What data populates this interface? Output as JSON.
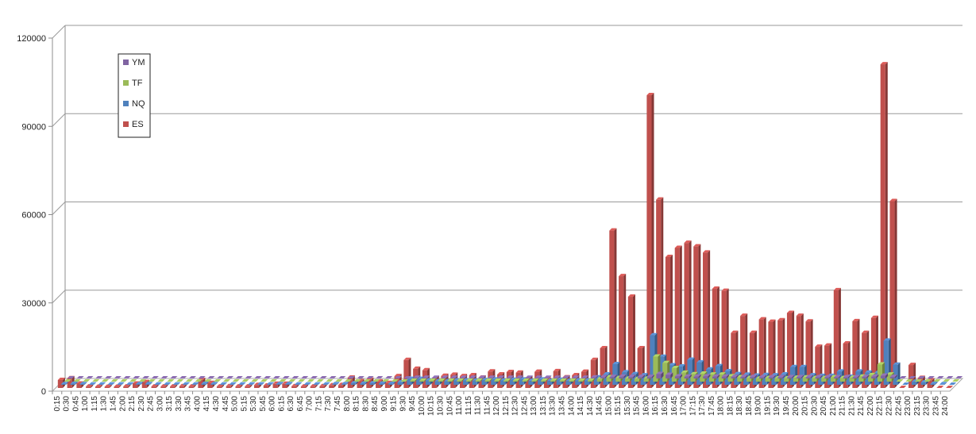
{
  "chart_data": {
    "type": "bar",
    "title": "",
    "xlabel": "",
    "ylabel": "",
    "ylim": [
      0,
      120000
    ],
    "yticks": [
      "0",
      "30000",
      "60000",
      "90000",
      "120000"
    ],
    "grid": true,
    "legend": {
      "placement": "top-left",
      "entries": [
        "YM",
        "TF",
        "NQ",
        "ES"
      ]
    },
    "colors": {
      "YM": "#8064A2",
      "TF": "#9BBB59",
      "NQ": "#4F81BD",
      "ES": "#C0504D"
    },
    "categories": [
      "0:15",
      "0:30",
      "0:45",
      "1:00",
      "1:15",
      "1:30",
      "1:45",
      "2:00",
      "2:15",
      "2:30",
      "2:45",
      "3:00",
      "3:15",
      "3:30",
      "3:45",
      "4:00",
      "4:15",
      "4:30",
      "4:45",
      "5:00",
      "5:15",
      "5:30",
      "5:45",
      "6:00",
      "6:15",
      "6:30",
      "6:45",
      "7:00",
      "7:15",
      "7:30",
      "7:45",
      "8:00",
      "8:15",
      "8:30",
      "8:45",
      "9:00",
      "9:15",
      "9:30",
      "9:45",
      "10:00",
      "10:15",
      "10:30",
      "10:45",
      "11:00",
      "11:15",
      "11:30",
      "11:45",
      "12:00",
      "12:15",
      "12:30",
      "12:45",
      "13:00",
      "13:15",
      "13:30",
      "13:45",
      "14:00",
      "14:15",
      "14:30",
      "14:45",
      "15:00",
      "15:15",
      "15:30",
      "15:45",
      "16:00",
      "16:15",
      "16:30",
      "16:45",
      "17:00",
      "17:15",
      "17:30",
      "17:45",
      "18:00",
      "18:15",
      "18:30",
      "18:45",
      "19:00",
      "19:15",
      "19:30",
      "19:45",
      "20:00",
      "20:15",
      "20:30",
      "20:45",
      "21:00",
      "21:15",
      "21:30",
      "21:45",
      "22:00",
      "22:15",
      "22:30",
      "22:45",
      "23:00",
      "23:15",
      "23:30",
      "23:45",
      "24:00"
    ],
    "series": [
      {
        "name": "YM",
        "values": [
          0,
          0,
          0,
          0,
          0,
          0,
          0,
          0,
          0,
          0,
          0,
          0,
          0,
          0,
          0,
          0,
          0,
          0,
          0,
          0,
          0,
          0,
          0,
          0,
          0,
          0,
          0,
          0,
          0,
          0,
          0,
          0,
          0,
          0,
          0,
          0,
          0,
          200,
          200,
          200,
          200,
          200,
          200,
          200,
          200,
          200,
          200,
          200,
          200,
          200,
          200,
          200,
          200,
          200,
          200,
          200,
          300,
          400,
          500,
          600,
          500,
          500,
          500,
          1500,
          1200,
          700,
          600,
          600,
          700,
          600,
          600,
          500,
          500,
          500,
          400,
          400,
          400,
          400,
          400,
          400,
          400,
          400,
          400,
          400,
          400,
          500,
          600,
          900,
          500,
          0,
          0,
          0,
          0,
          0,
          0,
          0
        ]
      },
      {
        "name": "TF",
        "values": [
          0,
          0,
          0,
          0,
          0,
          0,
          0,
          0,
          0,
          0,
          0,
          0,
          0,
          0,
          0,
          0,
          0,
          0,
          0,
          0,
          0,
          0,
          0,
          0,
          0,
          0,
          0,
          0,
          0,
          0,
          0,
          0,
          0,
          0,
          0,
          0,
          0,
          300,
          300,
          300,
          300,
          300,
          300,
          300,
          300,
          300,
          300,
          300,
          300,
          300,
          300,
          300,
          300,
          300,
          300,
          300,
          400,
          800,
          1500,
          1200,
          1000,
          900,
          1000,
          8500,
          6300,
          4600,
          3000,
          2500,
          2700,
          2400,
          2400,
          1800,
          1500,
          1200,
          1000,
          1200,
          1100,
          1100,
          1300,
          1400,
          1200,
          1200,
          1500,
          1200,
          1300,
          1700,
          2200,
          5800,
          2400,
          0,
          0,
          0,
          0,
          0,
          0,
          0
        ]
      },
      {
        "name": "NQ",
        "values": [
          200,
          300,
          200,
          100,
          100,
          100,
          100,
          100,
          200,
          200,
          100,
          100,
          100,
          100,
          100,
          300,
          200,
          100,
          100,
          100,
          100,
          100,
          100,
          200,
          200,
          100,
          100,
          100,
          100,
          200,
          200,
          500,
          400,
          500,
          400,
          300,
          800,
          2000,
          2000,
          1500,
          1200,
          1200,
          1500,
          1500,
          1400,
          1600,
          1800,
          1500,
          1700,
          1800,
          1300,
          1800,
          1300,
          1700,
          1300,
          1500,
          1500,
          2500,
          3500,
          7000,
          4200,
          3600,
          3200,
          16800,
          9500,
          6600,
          6200,
          8500,
          7600,
          5200,
          6300,
          4600,
          3600,
          3400,
          3100,
          3300,
          3200,
          3500,
          6000,
          6000,
          3200,
          3000,
          3000,
          4500,
          2700,
          4500,
          4100,
          4000,
          15000,
          6800,
          0,
          1000,
          800,
          300,
          200,
          0
        ]
      },
      {
        "name": "ES",
        "values": [
          2700,
          3300,
          1500,
          500,
          400,
          400,
          400,
          500,
          1500,
          2000,
          500,
          500,
          500,
          600,
          500,
          2700,
          1700,
          500,
          600,
          500,
          500,
          1000,
          800,
          1400,
          1400,
          600,
          500,
          500,
          600,
          900,
          1000,
          3500,
          2300,
          2800,
          2200,
          1700,
          4000,
          9500,
          6500,
          6000,
          3300,
          4100,
          4500,
          4000,
          4300,
          3500,
          5600,
          4600,
          5400,
          5200,
          3300,
          5500,
          2800,
          5700,
          3600,
          4300,
          5500,
          9500,
          13500,
          53500,
          38000,
          31000,
          13500,
          99500,
          64000,
          44500,
          47600,
          49300,
          48100,
          46000,
          33700,
          33000,
          18700,
          24500,
          18700,
          23300,
          22500,
          23000,
          25500,
          24500,
          22600,
          14000,
          14400,
          33200,
          15100,
          22700,
          18700,
          23800,
          110000,
          63500,
          0,
          7800,
          3400,
          2600,
          0,
          0
        ]
      }
    ]
  }
}
